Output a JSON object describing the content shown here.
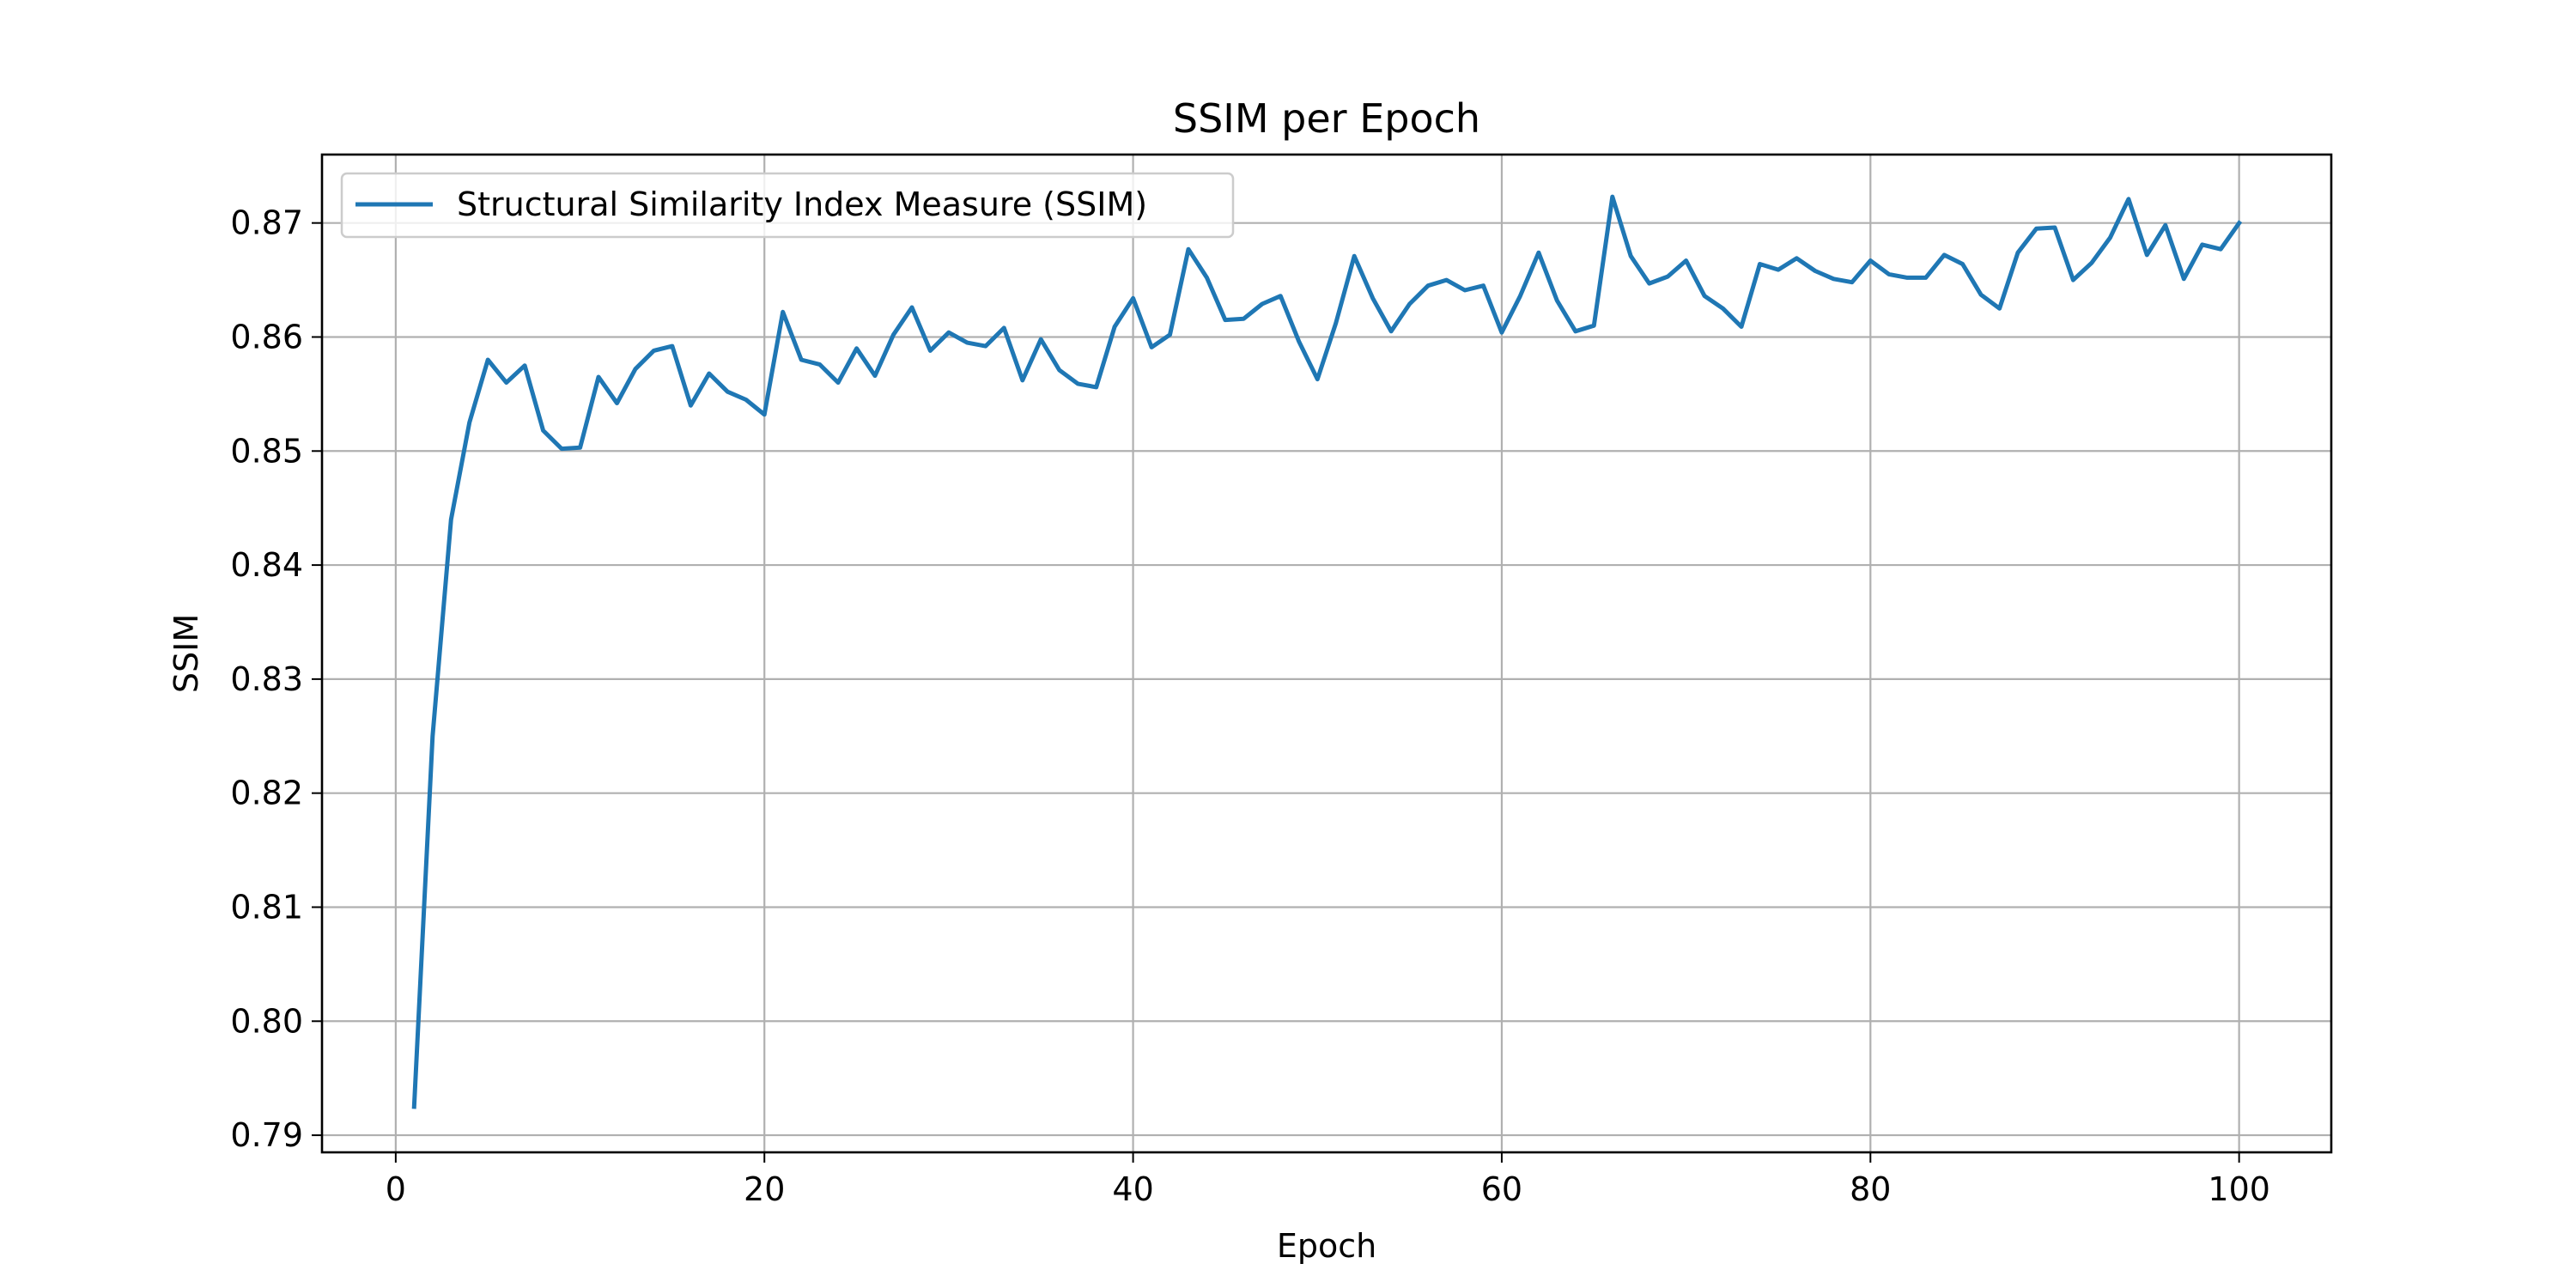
{
  "chart_data": {
    "type": "line",
    "title": "SSIM per Epoch",
    "xlabel": "Epoch",
    "ylabel": "SSIM",
    "xlim": [
      -4,
      105
    ],
    "ylim": [
      0.7885,
      0.876
    ],
    "xticks": [
      0,
      20,
      40,
      60,
      80,
      100
    ],
    "yticks": [
      0.79,
      0.8,
      0.81,
      0.82,
      0.83,
      0.84,
      0.85,
      0.86,
      0.87
    ],
    "ytick_labels": [
      "0.79",
      "0.80",
      "0.81",
      "0.82",
      "0.83",
      "0.84",
      "0.85",
      "0.86",
      "0.87"
    ],
    "grid": true,
    "legend_position": "upper left",
    "series": [
      {
        "name": "Structural Similarity Index Measure (SSIM)",
        "color": "#1f77b4",
        "x": [
          1,
          2,
          3,
          4,
          5,
          6,
          7,
          8,
          9,
          10,
          11,
          12,
          13,
          14,
          15,
          16,
          17,
          18,
          19,
          20,
          21,
          22,
          23,
          24,
          25,
          26,
          27,
          28,
          29,
          30,
          31,
          32,
          33,
          34,
          35,
          36,
          37,
          38,
          39,
          40,
          41,
          42,
          43,
          44,
          45,
          46,
          47,
          48,
          49,
          50,
          51,
          52,
          53,
          54,
          55,
          56,
          57,
          58,
          59,
          60,
          61,
          62,
          63,
          64,
          65,
          66,
          67,
          68,
          69,
          70,
          71,
          72,
          73,
          74,
          75,
          76,
          77,
          78,
          79,
          80,
          81,
          82,
          83,
          84,
          85,
          86,
          87,
          88,
          89,
          90,
          91,
          92,
          93,
          94,
          95,
          96,
          97,
          98,
          99,
          100
        ],
        "values": [
          0.7925,
          0.825,
          0.844,
          0.8525,
          0.858,
          0.856,
          0.8575,
          0.8518,
          0.8502,
          0.8503,
          0.8565,
          0.8542,
          0.8572,
          0.8588,
          0.8592,
          0.854,
          0.8568,
          0.8552,
          0.8545,
          0.8532,
          0.8622,
          0.858,
          0.8576,
          0.856,
          0.859,
          0.8566,
          0.8602,
          0.8626,
          0.8588,
          0.8604,
          0.8595,
          0.8592,
          0.8608,
          0.8562,
          0.8598,
          0.8571,
          0.8559,
          0.8556,
          0.8609,
          0.8634,
          0.8591,
          0.8602,
          0.8677,
          0.8652,
          0.8615,
          0.8616,
          0.8629,
          0.8636,
          0.8596,
          0.8563,
          0.8612,
          0.8671,
          0.8634,
          0.8605,
          0.8629,
          0.8645,
          0.865,
          0.8641,
          0.8645,
          0.8604,
          0.8636,
          0.8674,
          0.8632,
          0.8605,
          0.861,
          0.8723,
          0.8671,
          0.8647,
          0.8653,
          0.8667,
          0.8636,
          0.8625,
          0.8609,
          0.8664,
          0.8659,
          0.8669,
          0.8658,
          0.8651,
          0.8648,
          0.8667,
          0.8655,
          0.8652,
          0.8652,
          0.8672,
          0.8664,
          0.8637,
          0.8625,
          0.8674,
          0.8695,
          0.8696,
          0.865,
          0.8665,
          0.8687,
          0.8721,
          0.8672,
          0.8698,
          0.8651,
          0.8681,
          0.8677,
          0.87
        ]
      }
    ]
  }
}
